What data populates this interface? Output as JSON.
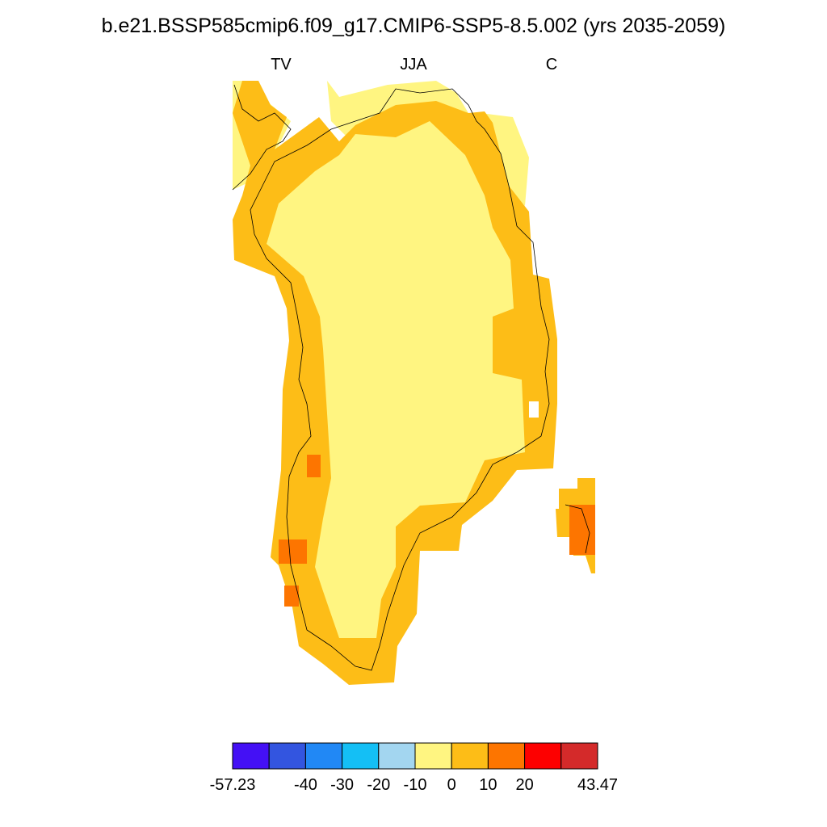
{
  "title": "b.e21.BSSP585cmip6.f09_g17.CMIP6-SSP5-8.5.002 (yrs 2035-2059)",
  "labels": {
    "left": "TV",
    "center": "JJA",
    "right": "C"
  },
  "colorbar": {
    "colors": [
      "#4410f5",
      "#3355e0",
      "#2188f5",
      "#14bff5",
      "#a3d6f0",
      "#fff581",
      "#fdbd17",
      "#fd7500",
      "#fd0000",
      "#d42a2a"
    ],
    "labels": [
      "-57.23",
      null,
      "-40",
      "-30",
      "-20",
      "-10",
      "0",
      "10",
      "20",
      null,
      "43.47"
    ]
  }
}
